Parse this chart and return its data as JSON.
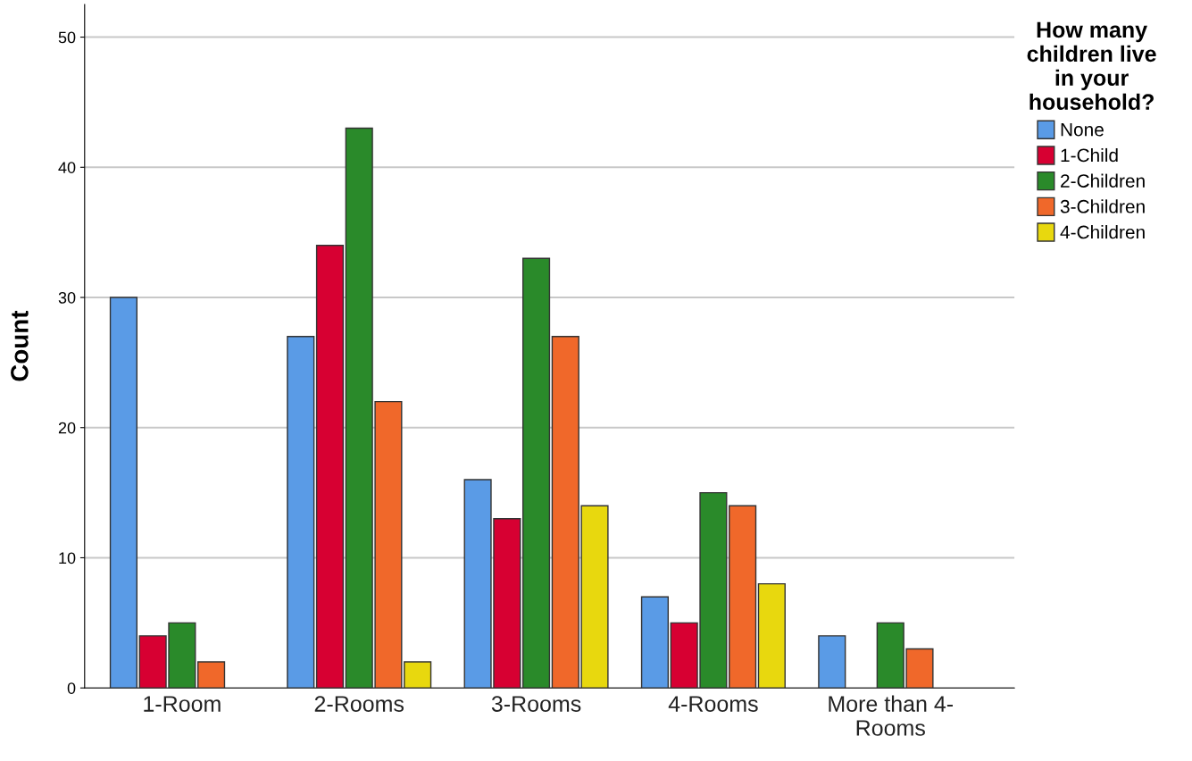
{
  "chart_data": {
    "type": "bar",
    "ylabel": "Count",
    "legend_title": "How many\nchildren live\nin your\nhousehold?",
    "categories": [
      "1-Room",
      "2-Rooms",
      "3-Rooms",
      "4-Rooms",
      "More than 4-\nRooms"
    ],
    "series": [
      {
        "name": "None",
        "color": "#5a9be6",
        "values": [
          30,
          27,
          16,
          7,
          4
        ]
      },
      {
        "name": "1-Child",
        "color": "#d70032",
        "values": [
          4,
          34,
          13,
          5,
          null
        ]
      },
      {
        "name": "2-Children",
        "color": "#2a8a2a",
        "values": [
          5,
          43,
          33,
          15,
          5
        ]
      },
      {
        "name": "3-Children",
        "color": "#f0682a",
        "values": [
          2,
          22,
          27,
          14,
          3
        ]
      },
      {
        "name": "4-Children",
        "color": "#e8d80e",
        "values": [
          null,
          2,
          14,
          8,
          null
        ]
      }
    ],
    "ylim": [
      0,
      52.5
    ],
    "yticks": [
      0,
      10,
      20,
      30,
      40,
      50
    ],
    "grid": "y",
    "legend": "top right"
  }
}
